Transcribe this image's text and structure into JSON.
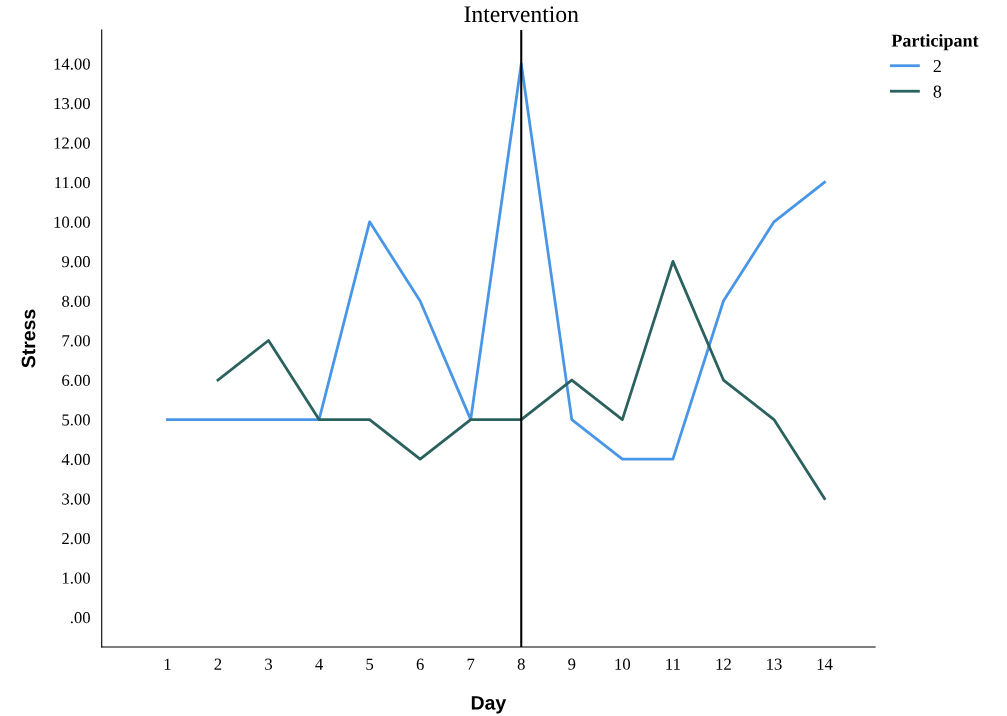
{
  "chart_data": {
    "type": "line",
    "xlabel": "Day",
    "ylabel": "Stress",
    "legend_title": "Participant",
    "x": [
      1,
      2,
      3,
      4,
      5,
      6,
      7,
      8,
      9,
      10,
      11,
      12,
      13,
      14
    ],
    "xlim": [
      -0.3,
      15
    ],
    "xticks": [
      1,
      2,
      3,
      4,
      5,
      6,
      7,
      8,
      9,
      10,
      11,
      12,
      13,
      14
    ],
    "ylim": [
      -0.75,
      14.85
    ],
    "yticks": [
      {
        "value": 0,
        "label": ".00"
      },
      {
        "value": 1,
        "label": "1.00"
      },
      {
        "value": 2,
        "label": "2.00"
      },
      {
        "value": 3,
        "label": "3.00"
      },
      {
        "value": 4,
        "label": "4.00"
      },
      {
        "value": 5,
        "label": "5.00"
      },
      {
        "value": 6,
        "label": "6.00"
      },
      {
        "value": 7,
        "label": "7.00"
      },
      {
        "value": 8,
        "label": "8.00"
      },
      {
        "value": 9,
        "label": "9.00"
      },
      {
        "value": 10,
        "label": "10.00"
      },
      {
        "value": 11,
        "label": "11.00"
      },
      {
        "value": 12,
        "label": "12.00"
      },
      {
        "value": 13,
        "label": "13.00"
      },
      {
        "value": 14,
        "label": "14.00"
      }
    ],
    "series": [
      {
        "name": "2",
        "color": "#4a96e6",
        "values": [
          5,
          5,
          5,
          5,
          10,
          8,
          5,
          14,
          5,
          4,
          4,
          8,
          10,
          11
        ]
      },
      {
        "name": "8",
        "color": "#2b615e",
        "values": [
          null,
          6,
          7,
          5,
          5,
          4,
          5,
          5,
          6,
          5,
          9,
          6,
          5,
          3
        ]
      }
    ],
    "ref_lines": [
      {
        "axis": "x",
        "value": 8,
        "label": "Intervention",
        "color": "#000000"
      }
    ],
    "grid": false,
    "legend": "top right",
    "marker": "none",
    "line_style": "solid"
  }
}
